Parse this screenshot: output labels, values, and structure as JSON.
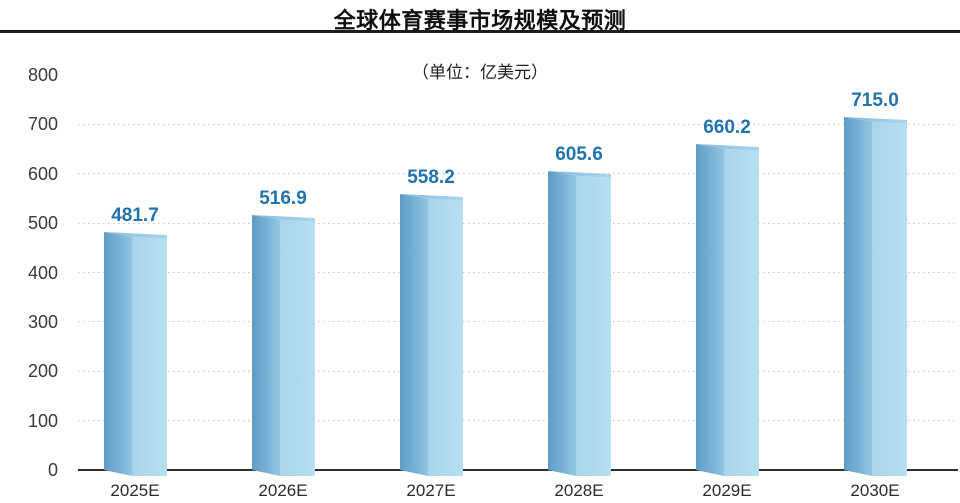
{
  "header": {
    "title": "全球体育赛事市场规模及预测",
    "unit_label": "（单位：亿美元）"
  },
  "chart_data": {
    "type": "bar",
    "title": "全球体育赛事市场规模及预测",
    "unit": "亿美元",
    "unit_label": "（单位：亿美元）",
    "categories": [
      "2025E",
      "2026E",
      "2027E",
      "2028E",
      "2029E",
      "2030E"
    ],
    "values": [
      481.7,
      516.9,
      558.2,
      605.6,
      660.2,
      715.0
    ],
    "value_labels": [
      "481.7",
      "516.9",
      "558.2",
      "605.6",
      "660.2",
      "715.0"
    ],
    "xlabel": "",
    "ylabel": "",
    "ylim": [
      0,
      800
    ],
    "ytick_labels": [
      "800",
      "700",
      "600",
      "500",
      "400",
      "300",
      "200",
      "100",
      "0"
    ],
    "yticks": [
      800,
      700,
      600,
      500,
      400,
      300,
      200,
      100,
      0
    ],
    "gridline_values": [
      700,
      600,
      500,
      400,
      300,
      200,
      100
    ],
    "grid": "horizontal dotted",
    "legend": "none",
    "bar_style": "pseudo-3d",
    "colors": {
      "bar_side_dark": "#5e9cc5",
      "bar_side_light": "#92c5e2",
      "bar_front_left": "#a9d4ea",
      "bar_front_right": "#b7dff2",
      "bar_top_dark": "#85b9da",
      "bar_top_light": "#a9d6ec",
      "value_label": "#2173ad",
      "y_tick_label": "#3b3b3b",
      "x_tick_label": "#2b2b2b",
      "gridline": "#c2c2c2",
      "axis_line": "#2e2e2e",
      "title": "#0f0f0f",
      "title_rule": "#1b1b1b"
    }
  }
}
